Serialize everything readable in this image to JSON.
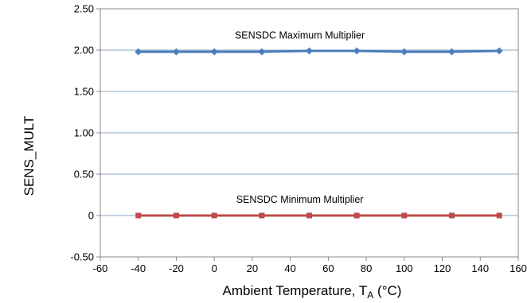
{
  "chart_data": {
    "type": "line",
    "xlabel": "Ambient Temperature, T",
    "xlabel_sub": "A",
    "xlabel_unit": " (°C)",
    "ylabel": "SENS_MULT",
    "xlim": [
      -60,
      160
    ],
    "ylim": [
      -0.5,
      2.5
    ],
    "xticks": [
      "-60",
      "-40",
      "-20",
      "0",
      "20",
      "40",
      "60",
      "80",
      "100",
      "120",
      "140",
      "160"
    ],
    "yticks": [
      "-0.50",
      "0",
      "0.50",
      "1.00",
      "1.50",
      "2.00",
      "2.50"
    ],
    "grid": "horizontal",
    "x": [
      -40,
      -20,
      0,
      25,
      50,
      75,
      100,
      125,
      150
    ],
    "series": [
      {
        "name": "SENSDC Maximum Multiplier",
        "color": "#4a7ebb",
        "marker": "diamond",
        "values": [
          1.98,
          1.98,
          1.98,
          1.98,
          1.99,
          1.99,
          1.98,
          1.98,
          1.99
        ]
      },
      {
        "name": "SENSDC Minimum Multiplier",
        "color": "#be4b48",
        "marker": "square",
        "values": [
          0,
          0,
          0,
          0,
          0,
          0,
          0,
          0,
          0
        ]
      }
    ]
  }
}
